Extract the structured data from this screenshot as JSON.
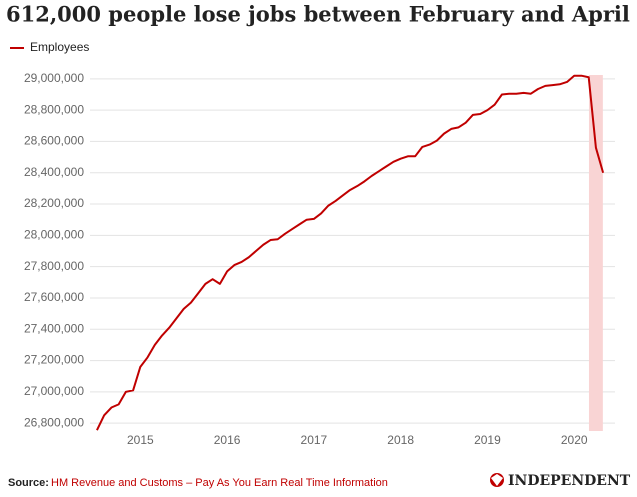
{
  "chart_data": {
    "type": "line",
    "title": "612,000 people lose jobs between February and April",
    "source_label": "Source:",
    "source": "HM Revenue and Customs – Pay As You Earn Real Time Information",
    "brand": "INDEPENDENT",
    "x": [
      2014.5,
      2014.583,
      2014.667,
      2014.75,
      2014.833,
      2014.917,
      2015,
      2015.083,
      2015.167,
      2015.25,
      2015.333,
      2015.417,
      2015.5,
      2015.583,
      2015.667,
      2015.75,
      2015.833,
      2015.917,
      2016,
      2016.083,
      2016.167,
      2016.25,
      2016.333,
      2016.417,
      2016.5,
      2016.583,
      2016.667,
      2016.75,
      2016.833,
      2016.917,
      2017,
      2017.083,
      2017.167,
      2017.25,
      2017.333,
      2017.417,
      2017.5,
      2017.583,
      2017.667,
      2017.75,
      2017.833,
      2017.917,
      2018,
      2018.083,
      2018.167,
      2018.25,
      2018.333,
      2018.417,
      2018.5,
      2018.583,
      2018.667,
      2018.75,
      2018.833,
      2018.917,
      2019,
      2019.083,
      2019.167,
      2019.25,
      2019.333,
      2019.417,
      2019.5,
      2019.583,
      2019.667,
      2019.75,
      2019.833,
      2019.917,
      2020,
      2020.083,
      2020.167,
      2020.25,
      2020.333
    ],
    "series": [
      {
        "name": "Employees",
        "color": "#c00000",
        "values": [
          26755000,
          26850000,
          26900000,
          26920000,
          27000000,
          27010000,
          27160000,
          27220000,
          27300000,
          27360000,
          27410000,
          27470000,
          27530000,
          27570000,
          27630000,
          27690000,
          27720000,
          27690000,
          27770000,
          27810000,
          27830000,
          27860000,
          27900000,
          27940000,
          27970000,
          27975000,
          28010000,
          28040000,
          28070000,
          28100000,
          28105000,
          28140000,
          28190000,
          28220000,
          28255000,
          28290000,
          28315000,
          28345000,
          28380000,
          28410000,
          28440000,
          28470000,
          28490000,
          28505000,
          28505000,
          28565000,
          28580000,
          28605000,
          28650000,
          28680000,
          28690000,
          28720000,
          28770000,
          28775000,
          28800000,
          28835000,
          28900000,
          28905000,
          28905000,
          28910000,
          28905000,
          28935000,
          28955000,
          28960000,
          28965000,
          28980000,
          29020000,
          29020000,
          29010000,
          28560000,
          28400000
        ]
      }
    ],
    "highlight": [
      2020.17,
      2020.33
    ],
    "highlight_color": "#f9d4d4",
    "xlim": [
      2014.42,
      2020.47
    ],
    "xticks": [
      2015,
      2016,
      2017,
      2018,
      2019,
      2020
    ],
    "ylim": [
      26750000,
      29050000
    ],
    "yticks": [
      {
        "value": 26800000,
        "label": "26,800,000"
      },
      {
        "value": 27000000,
        "label": "27,000,000"
      },
      {
        "value": 27200000,
        "label": "27,200,000"
      },
      {
        "value": 27400000,
        "label": "27,400,000"
      },
      {
        "value": 27600000,
        "label": "27,600,000"
      },
      {
        "value": 27800000,
        "label": "27,800,000"
      },
      {
        "value": 28000000,
        "label": "28,000,000"
      },
      {
        "value": 28200000,
        "label": "28,200,000"
      },
      {
        "value": 28400000,
        "label": "28,400,000"
      },
      {
        "value": 28600000,
        "label": "28,600,000"
      },
      {
        "value": 28800000,
        "label": "28,800,000"
      },
      {
        "value": 29000000,
        "label": "29,000,000"
      }
    ],
    "grid": true
  }
}
